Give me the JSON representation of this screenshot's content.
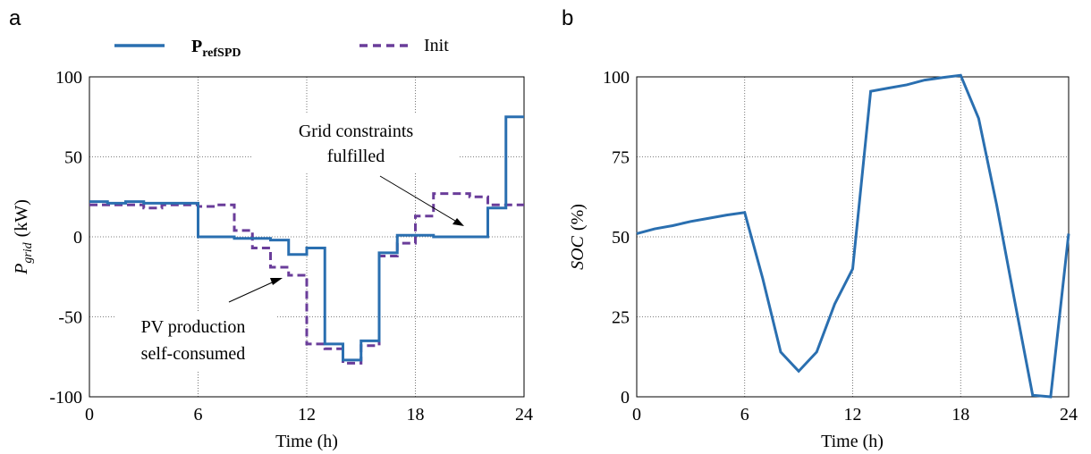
{
  "panels": {
    "a": {
      "letter": "a"
    },
    "b": {
      "letter": "b"
    }
  },
  "legend": {
    "series1_main": "P",
    "series1_sub": "refSPD",
    "series2": "Init"
  },
  "annotations": {
    "grid_line1": "Grid constraints",
    "grid_line2": "fulfilled",
    "pv_line1": "PV production",
    "pv_line2": "self-consumed"
  },
  "colors": {
    "series1": "#2a6fb0",
    "series2": "#6a3d9a"
  },
  "chart_data": [
    {
      "type": "line",
      "panel": "a",
      "xlabel": "Time (h)",
      "ylabel_main": "P",
      "ylabel_sub": "grid",
      "ylabel_unit": "(kW)",
      "xlim": [
        0,
        24
      ],
      "ylim": [
        -100,
        100
      ],
      "xticks": [
        0,
        6,
        12,
        18,
        24
      ],
      "yticks": [
        -100,
        -50,
        0,
        50,
        100
      ],
      "grid": true,
      "legend_position": "top",
      "step": true,
      "series": [
        {
          "name": "PrefSPD",
          "style": "solid",
          "x": [
            0,
            1,
            2,
            3,
            4,
            5,
            6,
            7,
            8,
            9,
            10,
            11,
            12,
            13,
            14,
            15,
            16,
            17,
            18,
            19,
            20,
            21,
            22,
            23,
            24
          ],
          "values": [
            22,
            21,
            22,
            21,
            21,
            21,
            0,
            0,
            -1,
            -1,
            -2,
            -11,
            -7,
            -67,
            -77,
            -65,
            -10,
            1,
            1,
            0,
            0,
            0,
            18,
            75,
            75
          ]
        },
        {
          "name": "Init",
          "style": "dashed",
          "x": [
            0,
            1,
            2,
            3,
            4,
            5,
            6,
            7,
            8,
            9,
            10,
            11,
            12,
            13,
            14,
            15,
            16,
            17,
            18,
            19,
            20,
            21,
            22,
            23,
            24
          ],
          "values": [
            20,
            20,
            20,
            18,
            20,
            20,
            19,
            20,
            4,
            -7,
            -19,
            -24,
            -67,
            -70,
            -79,
            -68,
            -12,
            -4,
            13,
            27,
            27,
            25,
            20,
            20,
            20
          ]
        }
      ]
    },
    {
      "type": "line",
      "panel": "b",
      "xlabel": "Time (h)",
      "ylabel_main": "SOC",
      "ylabel_unit": "(%)",
      "xlim": [
        0,
        24
      ],
      "ylim": [
        0,
        100
      ],
      "xticks": [
        0,
        6,
        12,
        18,
        24
      ],
      "yticks": [
        0,
        25,
        50,
        75,
        100
      ],
      "grid": true,
      "series": [
        {
          "style": "solid",
          "x": [
            0,
            1,
            2,
            3,
            4,
            5,
            6,
            7,
            8,
            9,
            10,
            11,
            12,
            13,
            14,
            15,
            16,
            17,
            18,
            19,
            20,
            21,
            22,
            23,
            24
          ],
          "values": [
            51,
            52.5,
            53.5,
            54.8,
            55.8,
            56.8,
            57.6,
            37,
            14,
            8,
            14,
            29,
            40,
            95.5,
            96.5,
            97.5,
            99,
            99.8,
            100.5,
            87,
            60,
            30,
            0.5,
            0,
            51
          ]
        }
      ]
    }
  ]
}
